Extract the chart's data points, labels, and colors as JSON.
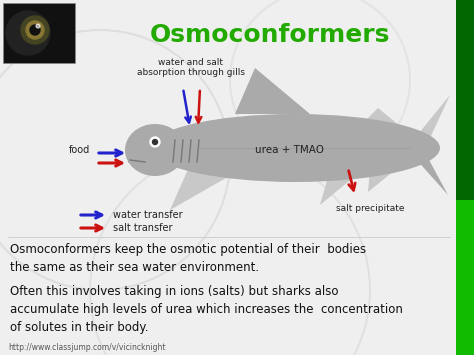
{
  "title": "Osmoconformers",
  "title_color": "#22aa00",
  "title_fontsize": 18,
  "bg_color": "#efefef",
  "text1": "Osmoconformers keep the osmotic potential of their  bodies\nthe same as their sea water environment.",
  "text2": "Often this involves taking in ions (salts) but sharks also\naccumulate high levels of urea which increases the  concentration\nof solutes in their body.",
  "text_fontsize": 8.5,
  "url_text": "http://www.classjump.com/v/vicincknight",
  "url_fontsize": 5.5,
  "label_water_salt": "water and salt\nabsorption through gills",
  "label_urea": "urea + TMAO",
  "label_salt_precip": "salt precipitate",
  "label_food": "food",
  "label_water_transfer": "water transfer",
  "label_salt_transfer": "salt transfer",
  "right_border_color": "#11bb00",
  "shark_color": "#aaaaaa",
  "shark_color_light": "#c8c8c8",
  "shark_color_dark": "#999999",
  "arrow_blue": "#2222cc",
  "arrow_red": "#cc1111",
  "label_fontsize": 6.5,
  "legend_fontsize": 7.0
}
